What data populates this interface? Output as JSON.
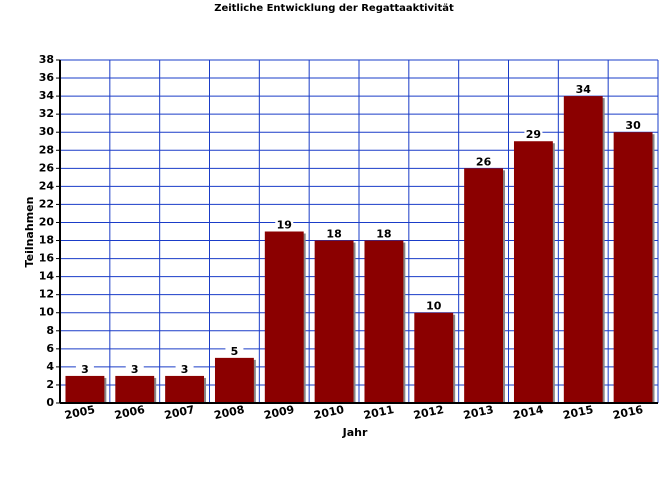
{
  "chart_data": {
    "type": "bar",
    "title": "Zeitliche Entwicklung der Regattaaktivität",
    "x_label": "Jahr",
    "y_label": "Teilnahmen",
    "categories": [
      "2005",
      "2006",
      "2007",
      "2008",
      "2009",
      "2010",
      "2011",
      "2012",
      "2013",
      "2014",
      "2015",
      "2016"
    ],
    "values": [
      3,
      3,
      3,
      5,
      19,
      18,
      18,
      10,
      26,
      29,
      34,
      30
    ],
    "color": "#8b0000",
    "ylim": [
      0,
      38
    ],
    "yticks": [
      0,
      2,
      4,
      6,
      8,
      10,
      12,
      14,
      16,
      18,
      20,
      22,
      24,
      26,
      28,
      30,
      32,
      34,
      36,
      38
    ],
    "grid": true,
    "grid_color": "#1a3cc8"
  }
}
